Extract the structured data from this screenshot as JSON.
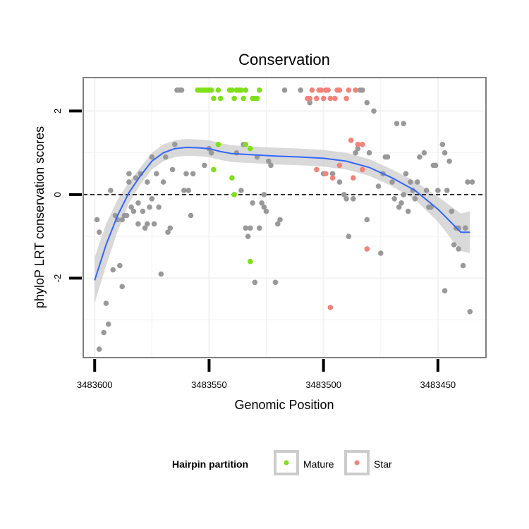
{
  "colors": {
    "background_point": "#999999",
    "mature": "#7FE01A",
    "star": "#F1837A",
    "smooth_line": "#3366FF",
    "ribbon": "#CCCCCC",
    "panel_grid": "#F2F2F2",
    "panel_border": "#7F7F7F",
    "reference_line": "#000000"
  },
  "chart_data": {
    "type": "scatter",
    "title": "Conservation",
    "xlabel": "Genomic Position",
    "ylabel": "phyloP LRT conservation scores",
    "x_reversed": true,
    "xlim": [
      3483429,
      3483605
    ],
    "ylim": [
      -3.9,
      2.8
    ],
    "x_ticks": [
      3483600,
      3483550,
      3483500,
      3483450
    ],
    "x_tick_labels": [
      "3483600",
      "3483550",
      "3483500",
      "3483450"
    ],
    "y_ticks": [
      -2,
      0,
      2
    ],
    "y_tick_labels": [
      "-2",
      "0",
      "2"
    ],
    "grid": true,
    "reference_line": {
      "y": 0,
      "style": "dashed"
    },
    "legend": {
      "title": "Hairpin partition",
      "position": "bottom",
      "entries": [
        {
          "label": "Mature",
          "series": "Mature"
        },
        {
          "label": "Star",
          "series": "Star"
        }
      ]
    },
    "series": [
      {
        "name": "",
        "color_key": "background_point",
        "points": [
          [
            3483599,
            -0.6
          ],
          [
            3483598,
            -0.9
          ],
          [
            3483598,
            -3.7
          ],
          [
            3483596,
            -3.3
          ],
          [
            3483595,
            -2.6
          ],
          [
            3483594,
            -3.1
          ],
          [
            3483593,
            0.1
          ],
          [
            3483592,
            -1.8
          ],
          [
            3483591,
            -0.5
          ],
          [
            3483590,
            -0.6
          ],
          [
            3483589,
            -1.7
          ],
          [
            3483588,
            -2.2
          ],
          [
            3483588,
            -0.6
          ],
          [
            3483587,
            -0.5
          ],
          [
            3483586,
            -0.5
          ],
          [
            3483585,
            0.3
          ],
          [
            3483585,
            0.5
          ],
          [
            3483584,
            -0.3
          ],
          [
            3483583,
            -0.4
          ],
          [
            3483582,
            0.4
          ],
          [
            3483581,
            -0.7
          ],
          [
            3483581,
            -0.2
          ],
          [
            3483580,
            0.5
          ],
          [
            3483579,
            -0.4
          ],
          [
            3483578,
            -0.8
          ],
          [
            3483577,
            0.3
          ],
          [
            3483577,
            -0.7
          ],
          [
            3483576,
            -0.3
          ],
          [
            3483575,
            -0.1
          ],
          [
            3483575,
            0.9
          ],
          [
            3483574,
            -0.7
          ],
          [
            3483573,
            0.5
          ],
          [
            3483572,
            -0.3
          ],
          [
            3483571,
            -1.9
          ],
          [
            3483570,
            0.3
          ],
          [
            3483569,
            0.9
          ],
          [
            3483568,
            -0.9
          ],
          [
            3483567,
            -0.8
          ],
          [
            3483566,
            0.6
          ],
          [
            3483565,
            1.2
          ],
          [
            3483564,
            2.5
          ],
          [
            3483563,
            2.5
          ],
          [
            3483562,
            2.5
          ],
          [
            3483561,
            0.1
          ],
          [
            3483560,
            0.5
          ],
          [
            3483559,
            0.1
          ],
          [
            3483558,
            -0.5
          ],
          [
            3483557,
            0.5
          ],
          [
            3483552,
            0.7
          ],
          [
            3483550,
            1.1
          ],
          [
            3483549,
            1.0
          ],
          [
            3483538,
            1.0
          ],
          [
            3483536,
            0.1
          ],
          [
            3483535,
            1.2
          ],
          [
            3483534,
            -0.8
          ],
          [
            3483533,
            -1.0
          ],
          [
            3483532,
            -0.8
          ],
          [
            3483531,
            -0.2
          ],
          [
            3483530,
            -2.1
          ],
          [
            3483529,
            0.9
          ],
          [
            3483528,
            -0.8
          ],
          [
            3483527,
            -0.2
          ],
          [
            3483526,
            -0.3
          ],
          [
            3483526,
            0.0
          ],
          [
            3483525,
            -0.4
          ],
          [
            3483524,
            0.8
          ],
          [
            3483523,
            0.7
          ],
          [
            3483521,
            -2.1
          ],
          [
            3483520,
            -0.7
          ],
          [
            3483519,
            -0.6
          ],
          [
            3483517,
            2.5
          ],
          [
            3483510,
            2.5
          ],
          [
            3483506,
            2.2
          ],
          [
            3483500,
            0.5
          ],
          [
            3483496,
            0.5
          ],
          [
            3483493,
            0.3
          ],
          [
            3483491,
            0.0
          ],
          [
            3483490,
            -0.1
          ],
          [
            3483489,
            -1.0
          ],
          [
            3483487,
            -0.1
          ],
          [
            3483486,
            1.0
          ],
          [
            3483485,
            1.1
          ],
          [
            3483484,
            2.5
          ],
          [
            3483483,
            2.5
          ],
          [
            3483481,
            -0.6
          ],
          [
            3483481,
            2.2
          ],
          [
            3483480,
            1.0
          ],
          [
            3483478,
            2.0
          ],
          [
            3483476,
            0.2
          ],
          [
            3483475,
            -1.4
          ],
          [
            3483474,
            0.5
          ],
          [
            3483473,
            0.9
          ],
          [
            3483472,
            0.9
          ],
          [
            3483470,
            0.3
          ],
          [
            3483469,
            -0.1
          ],
          [
            3483468,
            1.7
          ],
          [
            3483467,
            -0.3
          ],
          [
            3483466,
            -0.2
          ],
          [
            3483465,
            1.7
          ],
          [
            3483465,
            0.0
          ],
          [
            3483464,
            0.5
          ],
          [
            3483463,
            -0.4
          ],
          [
            3483462,
            0.3
          ],
          [
            3483461,
            0.1
          ],
          [
            3483460,
            -0.1
          ],
          [
            3483459,
            0.3
          ],
          [
            3483458,
            0.9
          ],
          [
            3483456,
            1.0
          ],
          [
            3483455,
            0.1
          ],
          [
            3483454,
            -0.3
          ],
          [
            3483453,
            -0.3
          ],
          [
            3483452,
            0.7
          ],
          [
            3483451,
            0.7
          ],
          [
            3483450,
            0.1
          ],
          [
            3483448,
            1.2
          ],
          [
            3483447,
            1.0
          ],
          [
            3483447,
            -2.3
          ],
          [
            3483446,
            0.1
          ],
          [
            3483445,
            0.8
          ],
          [
            3483444,
            -0.4
          ],
          [
            3483443,
            -1.2
          ],
          [
            3483442,
            -0.8
          ],
          [
            3483441,
            -0.8
          ],
          [
            3483441,
            -1.3
          ],
          [
            3483439,
            -1.7
          ],
          [
            3483438,
            -0.8
          ],
          [
            3483437,
            0.3
          ],
          [
            3483436,
            -2.8
          ],
          [
            3483435,
            0.3
          ]
        ]
      },
      {
        "name": "Mature",
        "color_key": "mature",
        "points": [
          [
            3483555,
            2.5
          ],
          [
            3483554,
            2.5
          ],
          [
            3483553,
            2.5
          ],
          [
            3483552,
            2.5
          ],
          [
            3483551,
            2.5
          ],
          [
            3483550,
            2.5
          ],
          [
            3483549,
            2.5
          ],
          [
            3483548,
            2.3
          ],
          [
            3483546,
            2.5
          ],
          [
            3483545,
            2.3
          ],
          [
            3483541,
            2.5
          ],
          [
            3483540,
            2.5
          ],
          [
            3483539,
            2.3
          ],
          [
            3483538,
            2.5
          ],
          [
            3483537,
            2.5
          ],
          [
            3483536,
            2.5
          ],
          [
            3483535,
            2.3
          ],
          [
            3483534,
            2.5
          ],
          [
            3483531,
            2.3
          ],
          [
            3483530,
            2.3
          ],
          [
            3483529,
            2.3
          ],
          [
            3483528,
            2.5
          ],
          [
            3483548,
            0.6
          ],
          [
            3483546,
            1.2
          ],
          [
            3483540,
            0.4
          ],
          [
            3483539,
            0.0
          ],
          [
            3483534,
            1.2
          ],
          [
            3483532,
            1.1
          ],
          [
            3483532,
            -1.6
          ]
        ]
      },
      {
        "name": "Star",
        "color_key": "star",
        "points": [
          [
            3483507,
            2.3
          ],
          [
            3483506,
            2.3
          ],
          [
            3483505,
            2.5
          ],
          [
            3483503,
            2.3
          ],
          [
            3483502,
            2.5
          ],
          [
            3483501,
            2.5
          ],
          [
            3483500,
            2.3
          ],
          [
            3483499,
            2.5
          ],
          [
            3483498,
            2.5
          ],
          [
            3483497,
            2.3
          ],
          [
            3483495,
            2.3
          ],
          [
            3483494,
            2.5
          ],
          [
            3483493,
            2.5
          ],
          [
            3483490,
            2.3
          ],
          [
            3483489,
            2.5
          ],
          [
            3483486,
            2.5
          ],
          [
            3483503,
            0.6
          ],
          [
            3483499,
            0.5
          ],
          [
            3483496,
            0.4
          ],
          [
            3483493,
            0.7
          ],
          [
            3483488,
            1.3
          ],
          [
            3483485,
            1.2
          ],
          [
            3483483,
            1.2
          ],
          [
            3483483,
            0.6
          ],
          [
            3483481,
            -1.3
          ],
          [
            3483487,
            0.4
          ],
          [
            3483497,
            -2.7
          ]
        ]
      }
    ],
    "smooth": {
      "name": "",
      "color_key": "smooth_line",
      "fit": [
        [
          3483600,
          -2.05
        ],
        [
          3483595,
          -1.2
        ],
        [
          3483590,
          -0.5
        ],
        [
          3483585,
          0.05
        ],
        [
          3483580,
          0.45
        ],
        [
          3483575,
          0.8
        ],
        [
          3483570,
          1.0
        ],
        [
          3483565,
          1.1
        ],
        [
          3483560,
          1.13
        ],
        [
          3483555,
          1.12
        ],
        [
          3483550,
          1.1
        ],
        [
          3483545,
          1.03
        ],
        [
          3483540,
          0.98
        ],
        [
          3483530,
          0.95
        ],
        [
          3483520,
          0.92
        ],
        [
          3483510,
          0.9
        ],
        [
          3483500,
          0.87
        ],
        [
          3483490,
          0.8
        ],
        [
          3483480,
          0.65
        ],
        [
          3483470,
          0.4
        ],
        [
          3483460,
          0.1
        ],
        [
          3483450,
          -0.35
        ],
        [
          3483440,
          -0.9
        ],
        [
          3483436,
          -0.9
        ]
      ],
      "se": [
        [
          3483600,
          0.55
        ],
        [
          3483595,
          0.5
        ],
        [
          3483590,
          0.38
        ],
        [
          3483585,
          0.25
        ],
        [
          3483580,
          0.2
        ],
        [
          3483575,
          0.2
        ],
        [
          3483570,
          0.2
        ],
        [
          3483565,
          0.2
        ],
        [
          3483560,
          0.2
        ],
        [
          3483555,
          0.2
        ],
        [
          3483550,
          0.2
        ],
        [
          3483545,
          0.2
        ],
        [
          3483540,
          0.2
        ],
        [
          3483530,
          0.2
        ],
        [
          3483520,
          0.2
        ],
        [
          3483510,
          0.2
        ],
        [
          3483500,
          0.2
        ],
        [
          3483490,
          0.2
        ],
        [
          3483480,
          0.2
        ],
        [
          3483470,
          0.2
        ],
        [
          3483460,
          0.22
        ],
        [
          3483450,
          0.3
        ],
        [
          3483440,
          0.45
        ],
        [
          3483436,
          0.5
        ]
      ]
    }
  }
}
